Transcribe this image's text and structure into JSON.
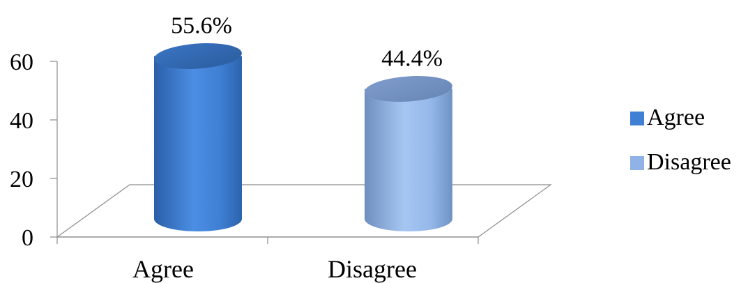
{
  "chart_data": {
    "type": "bar",
    "categories": [
      "Agree",
      "Disagree"
    ],
    "values": [
      55.6,
      44.4
    ],
    "data_labels": [
      "55.6%",
      "44.4%"
    ],
    "title": "",
    "xlabel": "",
    "ylabel": "",
    "ylim": [
      0,
      60
    ],
    "yticks": [
      "0",
      "20",
      "40",
      "60"
    ],
    "grid": false,
    "style": "3d-cylinder",
    "legend": {
      "placement": "right",
      "entries": [
        "Agree",
        "Disagree"
      ]
    },
    "colors": {
      "agree": "#3f7fd4",
      "disagree": "#8fb3e6"
    }
  }
}
